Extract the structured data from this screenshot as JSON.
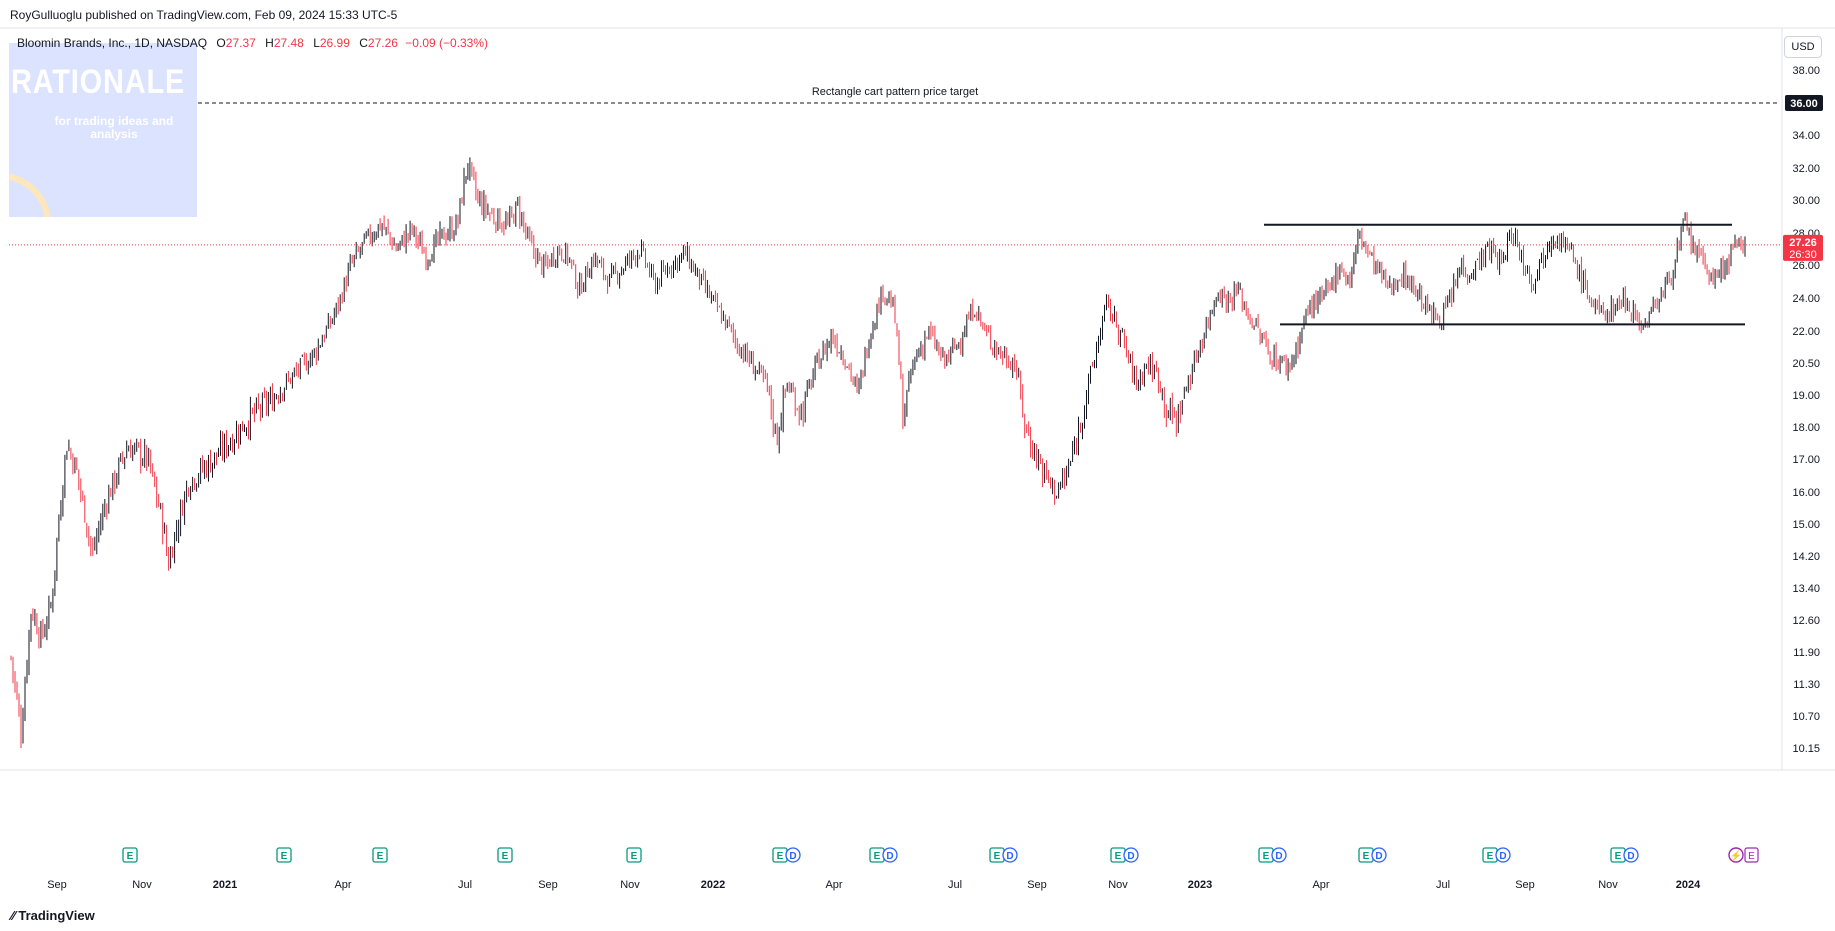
{
  "header": {
    "published": "RoyGulluoglu published on TradingView.com, Feb 09, 2024 15:33 UTC-5"
  },
  "legend": {
    "symbol": "Bloomin Brands, Inc., 1D, NASDAQ",
    "o_label": "O",
    "o_value": "27.37",
    "h_label": "H",
    "h_value": "27.48",
    "l_label": "L",
    "l_value": "26.99",
    "c_label": "C",
    "c_value": "27.26",
    "change": "−0.09 (−0.33%)"
  },
  "watermark": {
    "title": "RATIONALE",
    "subtitle": "for trading ideas and analysis"
  },
  "currency": "USD",
  "footer": {
    "brand": "TradingView"
  },
  "colors": {
    "up": "#131722",
    "down": "#f23645",
    "earnings": "#089981",
    "dividend": "#2962ff",
    "pricebox": "#f23645"
  },
  "chart_data": {
    "type": "candlestick",
    "annotations": [
      {
        "text": "Rectangle cart pattern price target",
        "value": 36.0
      }
    ],
    "resistance": 28.5,
    "support": 22.4,
    "y_axis_ticks": [
      "38.00",
      "36.00",
      "34.00",
      "32.00",
      "30.00",
      "28.00",
      "26.00",
      "24.00",
      "22.00",
      "20.50",
      "19.00",
      "18.00",
      "17.00",
      "16.00",
      "15.00",
      "14.20",
      "13.40",
      "12.60",
      "11.90",
      "11.30",
      "10.70",
      "10.15"
    ],
    "y_axis_values": [
      38,
      36,
      34,
      32,
      30,
      28,
      26,
      24,
      22,
      20.5,
      19,
      18,
      17,
      16,
      15,
      14.2,
      13.4,
      12.6,
      11.9,
      11.3,
      10.7,
      10.15
    ],
    "target_label": "36.00",
    "last_price": "27.26",
    "countdown": "26:30",
    "x_axis_ticks": [
      {
        "label": "Sep",
        "bold": false
      },
      {
        "label": "Nov",
        "bold": false
      },
      {
        "label": "2021",
        "bold": true
      },
      {
        "label": "Apr",
        "bold": false
      },
      {
        "label": "Jul",
        "bold": false
      },
      {
        "label": "Sep",
        "bold": false
      },
      {
        "label": "Nov",
        "bold": false
      },
      {
        "label": "2022",
        "bold": true
      },
      {
        "label": "Apr",
        "bold": false
      },
      {
        "label": "Jul",
        "bold": false
      },
      {
        "label": "Sep",
        "bold": false
      },
      {
        "label": "Nov",
        "bold": false
      },
      {
        "label": "2023",
        "bold": true
      },
      {
        "label": "Apr",
        "bold": false
      },
      {
        "label": "Jul",
        "bold": false
      },
      {
        "label": "Sep",
        "bold": false
      },
      {
        "label": "Nov",
        "bold": false
      },
      {
        "label": "2024",
        "bold": true
      }
    ],
    "events": [
      {
        "type": "E"
      },
      {
        "type": "E"
      },
      {
        "type": "E"
      },
      {
        "type": "E"
      },
      {
        "type": "E"
      },
      {
        "type": "ED"
      },
      {
        "type": "ED"
      },
      {
        "type": "ED"
      },
      {
        "type": "ED"
      },
      {
        "type": "ED"
      },
      {
        "type": "ED"
      },
      {
        "type": "ED"
      },
      {
        "type": "ED"
      },
      {
        "type": "SE"
      }
    ],
    "event_e_label": "E",
    "event_d_label": "D",
    "price_path": [
      [
        0.0,
        11.8
      ],
      [
        0.02,
        10.4
      ],
      [
        0.04,
        12.9
      ],
      [
        0.06,
        12.2
      ],
      [
        0.08,
        13.0
      ],
      [
        0.11,
        17.5
      ],
      [
        0.13,
        16.6
      ],
      [
        0.16,
        14.2
      ],
      [
        0.19,
        15.8
      ],
      [
        0.23,
        17.4
      ],
      [
        0.27,
        17.0
      ],
      [
        0.3,
        15.0
      ],
      [
        0.31,
        14.0
      ],
      [
        0.33,
        15.1
      ],
      [
        0.35,
        16.3
      ],
      [
        0.4,
        17.0
      ],
      [
        0.46,
        18.1
      ],
      [
        0.52,
        19.0
      ],
      [
        0.56,
        20.0
      ],
      [
        0.6,
        21.0
      ],
      [
        0.63,
        22.5
      ],
      [
        0.65,
        24.0
      ],
      [
        0.67,
        26.0
      ],
      [
        0.7,
        27.5
      ],
      [
        0.73,
        28.6
      ],
      [
        0.76,
        27.0
      ],
      [
        0.79,
        28.2
      ],
      [
        0.82,
        26.5
      ],
      [
        0.85,
        27.8
      ],
      [
        0.88,
        28.5
      ],
      [
        0.9,
        32.3
      ],
      [
        0.92,
        30.0
      ],
      [
        0.95,
        29.0
      ],
      [
        0.98,
        28.5
      ],
      [
        1.0,
        29.6
      ],
      [
        1.02,
        27.5
      ],
      [
        1.05,
        25.8
      ],
      [
        1.08,
        27.0
      ],
      [
        1.1,
        26.5
      ],
      [
        1.12,
        24.5
      ],
      [
        1.15,
        26.5
      ],
      [
        1.18,
        25.0
      ],
      [
        1.21,
        26.0
      ],
      [
        1.24,
        27.0
      ],
      [
        1.27,
        24.8
      ],
      [
        1.3,
        26.0
      ],
      [
        1.33,
        26.7
      ],
      [
        1.36,
        25.0
      ],
      [
        1.4,
        23.0
      ],
      [
        1.43,
        21.5
      ],
      [
        1.46,
        20.5
      ],
      [
        1.49,
        19.5
      ],
      [
        1.51,
        17.6
      ],
      [
        1.53,
        19.5
      ],
      [
        1.56,
        18.4
      ],
      [
        1.59,
        20.5
      ],
      [
        1.62,
        21.8
      ],
      [
        1.65,
        20.5
      ],
      [
        1.67,
        19.0
      ],
      [
        1.69,
        21.5
      ],
      [
        1.72,
        24.5
      ],
      [
        1.74,
        23.5
      ],
      [
        1.76,
        18.2
      ],
      [
        1.78,
        20.5
      ],
      [
        1.81,
        22.0
      ],
      [
        1.84,
        20.5
      ],
      [
        1.87,
        21.5
      ],
      [
        1.9,
        23.5
      ],
      [
        1.92,
        22.0
      ],
      [
        1.95,
        21.0
      ],
      [
        1.98,
        20.5
      ],
      [
        2.0,
        18.0
      ],
      [
        2.02,
        17.2
      ],
      [
        2.04,
        16.5
      ],
      [
        2.06,
        16.0
      ],
      [
        2.08,
        16.4
      ],
      [
        2.1,
        17.5
      ],
      [
        2.12,
        19.0
      ],
      [
        2.14,
        21.0
      ],
      [
        2.16,
        23.6
      ],
      [
        2.18,
        22.5
      ],
      [
        2.2,
        21.0
      ],
      [
        2.22,
        19.5
      ],
      [
        2.24,
        20.5
      ],
      [
        2.26,
        20.0
      ],
      [
        2.28,
        18.5
      ],
      [
        2.3,
        18.2
      ],
      [
        2.32,
        19.5
      ],
      [
        2.34,
        21.0
      ],
      [
        2.36,
        22.5
      ],
      [
        2.38,
        24.5
      ],
      [
        2.4,
        23.8
      ],
      [
        2.42,
        24.5
      ],
      [
        2.44,
        23.0
      ],
      [
        2.46,
        22.0
      ],
      [
        2.48,
        21.0
      ],
      [
        2.5,
        20.6
      ],
      [
        2.52,
        20.3
      ],
      [
        2.54,
        21.5
      ],
      [
        2.56,
        23.5
      ],
      [
        2.58,
        23.8
      ],
      [
        2.6,
        24.5
      ],
      [
        2.62,
        26.0
      ],
      [
        2.64,
        25.0
      ],
      [
        2.66,
        28.0
      ],
      [
        2.68,
        26.5
      ],
      [
        2.7,
        25.5
      ],
      [
        2.72,
        24.5
      ],
      [
        2.74,
        25.5
      ],
      [
        2.76,
        25.0
      ],
      [
        2.78,
        24.0
      ],
      [
        2.8,
        23.0
      ],
      [
        2.82,
        22.8
      ],
      [
        2.84,
        24.0
      ],
      [
        2.86,
        26.0
      ],
      [
        2.88,
        25.5
      ],
      [
        2.9,
        26.5
      ],
      [
        2.92,
        27.0
      ],
      [
        2.94,
        26.0
      ],
      [
        2.96,
        28.2
      ],
      [
        2.98,
        26.5
      ],
      [
        3.0,
        25.0
      ],
      [
        3.02,
        26.5
      ],
      [
        3.04,
        28.0
      ],
      [
        3.06,
        27.5
      ],
      [
        3.08,
        26.5
      ],
      [
        3.1,
        25.0
      ],
      [
        3.12,
        23.6
      ],
      [
        3.14,
        23.0
      ],
      [
        3.16,
        23.4
      ],
      [
        3.18,
        24.0
      ],
      [
        3.2,
        23.2
      ],
      [
        3.22,
        22.2
      ],
      [
        3.24,
        23.5
      ],
      [
        3.26,
        24.5
      ],
      [
        3.28,
        26.0
      ],
      [
        3.3,
        28.5
      ],
      [
        3.32,
        27.0
      ],
      [
        3.34,
        26.0
      ],
      [
        3.36,
        25.0
      ],
      [
        3.38,
        26.0
      ],
      [
        3.4,
        27.0
      ],
      [
        3.42,
        27.3
      ]
    ]
  }
}
